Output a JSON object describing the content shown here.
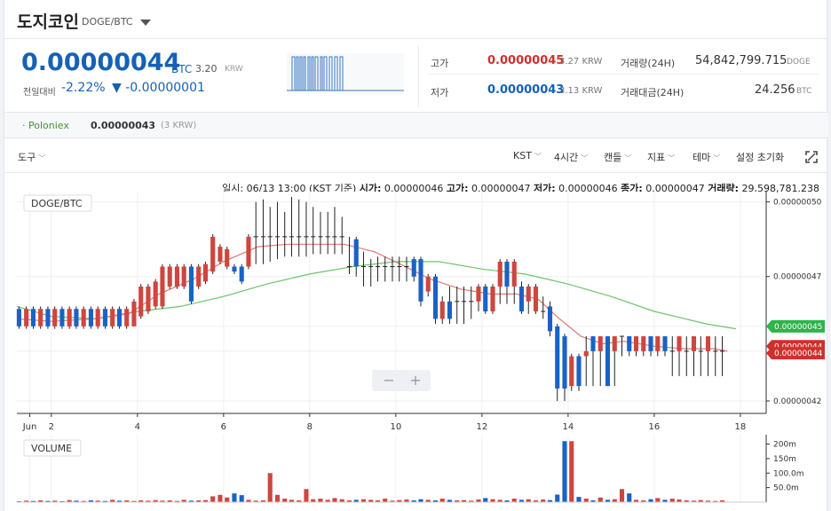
{
  "header": {
    "coin_name": "도지코인",
    "pair": "DOGE/BTC"
  },
  "price": {
    "current": "0.00000044",
    "unit": "BTC",
    "krw": "3.20",
    "krw_unit": "KRW",
    "change_label": "전일대비",
    "change_pct": "-2.22%",
    "change_val": "▼ -0.00000001"
  },
  "stats": {
    "high_label": "고가",
    "high_value": "0.00000045",
    "high_krw": "3.27 KRW",
    "low_label": "저가",
    "low_value": "0.00000043",
    "low_krw": "3.13 KRW",
    "volume_label": "거래량(24H)",
    "volume_value": "54,842,799.715",
    "volume_unit": "DOGE",
    "amount_label": "거래대금(24H)",
    "amount_value": "24.256",
    "amount_unit": "BTC"
  },
  "exchange": {
    "name": "· Poloniex",
    "price": "0.00000043",
    "krw": "(3 KRW)"
  },
  "toolbar": {
    "tools": "도구",
    "timezone": "KST",
    "interval": "4시간",
    "candle": "캔들",
    "indicator": "지표",
    "theme": "테마",
    "reset": "설정 초기화"
  },
  "info_line": {
    "time_label": "일시:",
    "time_value": "06/13 13:00 (KST 기준)",
    "open_label": "시가:",
    "open_value": "0.00000046",
    "high_label": "고가:",
    "high_value": "0.00000047",
    "low_label": "저가:",
    "low_value": "0.00000046",
    "close_label": "종가:",
    "close_value": "0.00000047",
    "vol_label": "거래량:",
    "vol_value": "29,598,781.238"
  },
  "chart_labels": {
    "price_legend": "DOGE/BTC",
    "volume_legend": "VOLUME",
    "zoom_out": "−",
    "zoom_in": "+"
  },
  "chart_data": {
    "type": "candlestick",
    "y_ticks": [
      "0.00000050",
      "0.00000047",
      "0.00000045",
      "0.00000044",
      "0.00000044",
      "0.00000042"
    ],
    "y_tick_values": [
      50,
      47,
      45,
      44,
      44,
      42
    ],
    "price_badges": [
      {
        "value": "0.00000045",
        "color": "#2db44a"
      },
      {
        "value": "0.00000044",
        "color": "#d0302d"
      },
      {
        "value": "0.00000044",
        "color": "#d0302d"
      }
    ],
    "x_tick_labels": [
      "Jun",
      "2",
      "4",
      "6",
      "8",
      "10",
      "12",
      "14",
      "16",
      "18"
    ],
    "x_tick_days": [
      0.5,
      1,
      3,
      5,
      7,
      9,
      11,
      13,
      15,
      17
    ],
    "ylim": [
      41.5,
      50.2
    ],
    "xlim_days": [
      0.2,
      17.6
    ],
    "volume_ticks": [
      "200m",
      "150m",
      "100.0m",
      "50.0m"
    ],
    "volume_tick_values": [
      200,
      150,
      100,
      50
    ],
    "volume_max": 220,
    "candles": [
      {
        "d": 0.25,
        "o": 45.7,
        "c": 45.0,
        "h": 45.8,
        "l": 44.9,
        "v": 3
      },
      {
        "d": 0.42,
        "o": 45.0,
        "c": 45.7,
        "h": 45.8,
        "l": 44.9,
        "v": 5
      },
      {
        "d": 0.58,
        "o": 45.7,
        "c": 45.0,
        "h": 45.8,
        "l": 44.9,
        "v": 4
      },
      {
        "d": 0.75,
        "o": 45.0,
        "c": 45.7,
        "h": 45.8,
        "l": 44.9,
        "v": 6
      },
      {
        "d": 0.92,
        "o": 45.7,
        "c": 45.0,
        "h": 45.8,
        "l": 44.9,
        "v": 4
      },
      {
        "d": 1.08,
        "o": 45.0,
        "c": 45.7,
        "h": 45.8,
        "l": 44.9,
        "v": 5
      },
      {
        "d": 1.25,
        "o": 45.7,
        "c": 45.0,
        "h": 45.8,
        "l": 44.9,
        "v": 3
      },
      {
        "d": 1.42,
        "o": 45.0,
        "c": 45.7,
        "h": 45.8,
        "l": 44.9,
        "v": 7
      },
      {
        "d": 1.58,
        "o": 45.7,
        "c": 45.0,
        "h": 45.8,
        "l": 44.9,
        "v": 5
      },
      {
        "d": 1.75,
        "o": 45.0,
        "c": 45.7,
        "h": 45.8,
        "l": 44.9,
        "v": 4
      },
      {
        "d": 1.92,
        "o": 45.7,
        "c": 45.0,
        "h": 45.8,
        "l": 44.9,
        "v": 6
      },
      {
        "d": 2.08,
        "o": 45.0,
        "c": 45.7,
        "h": 45.8,
        "l": 44.9,
        "v": 5
      },
      {
        "d": 2.25,
        "o": 45.7,
        "c": 45.0,
        "h": 45.8,
        "l": 44.9,
        "v": 4
      },
      {
        "d": 2.42,
        "o": 45.0,
        "c": 45.7,
        "h": 45.8,
        "l": 44.9,
        "v": 8
      },
      {
        "d": 2.58,
        "o": 45.7,
        "c": 45.0,
        "h": 45.8,
        "l": 44.9,
        "v": 5
      },
      {
        "d": 2.75,
        "o": 45.0,
        "c": 45.7,
        "h": 45.8,
        "l": 44.9,
        "v": 6
      },
      {
        "d": 2.92,
        "o": 45.0,
        "c": 46.0,
        "h": 46.1,
        "l": 45.0,
        "v": 4
      },
      {
        "d": 3.08,
        "o": 45.4,
        "c": 46.6,
        "h": 46.7,
        "l": 45.3,
        "v": 6
      },
      {
        "d": 3.25,
        "o": 45.6,
        "c": 46.6,
        "h": 46.7,
        "l": 45.5,
        "v": 5
      },
      {
        "d": 3.42,
        "o": 45.8,
        "c": 46.8,
        "h": 46.9,
        "l": 45.7,
        "v": 7
      },
      {
        "d": 3.58,
        "o": 45.8,
        "c": 47.4,
        "h": 47.5,
        "l": 45.7,
        "v": 5
      },
      {
        "d": 3.75,
        "o": 46.6,
        "c": 47.4,
        "h": 47.5,
        "l": 46.5,
        "v": 6
      },
      {
        "d": 3.92,
        "o": 46.6,
        "c": 47.4,
        "h": 47.5,
        "l": 46.5,
        "v": 4
      },
      {
        "d": 4.08,
        "o": 46.6,
        "c": 47.4,
        "h": 47.5,
        "l": 46.5,
        "v": 8
      },
      {
        "d": 4.25,
        "o": 47.4,
        "c": 46.0,
        "h": 47.5,
        "l": 45.9,
        "v": 5
      },
      {
        "d": 4.42,
        "o": 46.6,
        "c": 47.4,
        "h": 47.5,
        "l": 46.5,
        "v": 6
      },
      {
        "d": 4.58,
        "o": 46.8,
        "c": 47.5,
        "h": 47.6,
        "l": 46.7,
        "v": 7
      },
      {
        "d": 4.75,
        "o": 47.2,
        "c": 48.6,
        "h": 48.7,
        "l": 47.1,
        "v": 20
      },
      {
        "d": 4.92,
        "o": 47.6,
        "c": 48.2,
        "h": 48.3,
        "l": 47.5,
        "v": 25
      },
      {
        "d": 5.08,
        "o": 47.4,
        "c": 48.1,
        "h": 48.2,
        "l": 47.3,
        "v": 16
      },
      {
        "d": 5.25,
        "o": 47.4,
        "c": 47.2,
        "h": 47.5,
        "l": 47.1,
        "v": 30
      },
      {
        "d": 5.42,
        "o": 47.4,
        "c": 46.8,
        "h": 47.5,
        "l": 46.7,
        "v": 24
      },
      {
        "d": 5.58,
        "o": 47.4,
        "c": 48.6,
        "h": 48.7,
        "l": 47.3,
        "v": 8
      },
      {
        "d": 5.75,
        "o": 48.6,
        "c": 48.6,
        "h": 50.0,
        "l": 47.5,
        "v": 5
      },
      {
        "d": 5.92,
        "o": 48.6,
        "c": 48.6,
        "h": 50.1,
        "l": 47.5,
        "v": 6
      },
      {
        "d": 6.08,
        "o": 48.6,
        "c": 48.6,
        "h": 49.8,
        "l": 47.6,
        "v": 100
      },
      {
        "d": 6.25,
        "o": 48.6,
        "c": 48.6,
        "h": 50.0,
        "l": 47.7,
        "v": 25
      },
      {
        "d": 6.42,
        "o": 48.6,
        "c": 48.6,
        "h": 49.6,
        "l": 47.8,
        "v": 12
      },
      {
        "d": 6.58,
        "o": 48.6,
        "c": 48.6,
        "h": 50.2,
        "l": 47.8,
        "v": 8
      },
      {
        "d": 6.75,
        "o": 48.6,
        "c": 48.6,
        "h": 50.1,
        "l": 47.8,
        "v": 6
      },
      {
        "d": 6.92,
        "o": 48.6,
        "c": 48.6,
        "h": 50.0,
        "l": 47.8,
        "v": 45
      },
      {
        "d": 7.08,
        "o": 48.6,
        "c": 48.6,
        "h": 49.8,
        "l": 47.9,
        "v": 10
      },
      {
        "d": 7.25,
        "o": 48.6,
        "c": 48.6,
        "h": 49.6,
        "l": 47.9,
        "v": 12
      },
      {
        "d": 7.42,
        "o": 48.6,
        "c": 48.6,
        "h": 49.6,
        "l": 47.9,
        "v": 8
      },
      {
        "d": 7.58,
        "o": 48.6,
        "c": 48.6,
        "h": 49.8,
        "l": 47.9,
        "v": 14
      },
      {
        "d": 7.75,
        "o": 48.6,
        "c": 48.6,
        "h": 49.4,
        "l": 47.9,
        "v": 10
      },
      {
        "d": 7.92,
        "o": 47.4,
        "c": 47.4,
        "h": 48.6,
        "l": 47.1,
        "v": 6
      },
      {
        "d": 8.08,
        "o": 48.5,
        "c": 47.4,
        "h": 48.6,
        "l": 47.0,
        "v": 8
      },
      {
        "d": 8.25,
        "o": 47.4,
        "c": 47.4,
        "h": 48.0,
        "l": 46.6,
        "v": 10
      },
      {
        "d": 8.42,
        "o": 47.4,
        "c": 47.4,
        "h": 47.7,
        "l": 46.6,
        "v": 8
      },
      {
        "d": 8.58,
        "o": 47.4,
        "c": 47.4,
        "h": 47.8,
        "l": 46.8,
        "v": 6
      },
      {
        "d": 8.75,
        "o": 47.4,
        "c": 47.4,
        "h": 47.8,
        "l": 46.8,
        "v": 12
      },
      {
        "d": 8.92,
        "o": 47.4,
        "c": 47.4,
        "h": 47.8,
        "l": 46.8,
        "v": 5
      },
      {
        "d": 9.08,
        "o": 47.4,
        "c": 47.4,
        "h": 47.8,
        "l": 46.8,
        "v": 7
      },
      {
        "d": 9.25,
        "o": 47.4,
        "c": 47.4,
        "h": 47.8,
        "l": 46.8,
        "v": 9
      },
      {
        "d": 9.42,
        "o": 47.7,
        "c": 47.0,
        "h": 47.8,
        "l": 46.8,
        "v": 6
      },
      {
        "d": 9.58,
        "o": 47.7,
        "c": 46.0,
        "h": 47.8,
        "l": 45.8,
        "v": 10
      },
      {
        "d": 9.75,
        "o": 46.4,
        "c": 47.0,
        "h": 47.1,
        "l": 46.2,
        "v": 8
      },
      {
        "d": 9.92,
        "o": 47.0,
        "c": 45.3,
        "h": 47.1,
        "l": 45.1,
        "v": 6
      },
      {
        "d": 10.08,
        "o": 45.3,
        "c": 46.0,
        "h": 46.2,
        "l": 45.1,
        "v": 12
      },
      {
        "d": 10.25,
        "o": 46.0,
        "c": 45.3,
        "h": 46.6,
        "l": 45.1,
        "v": 8
      },
      {
        "d": 10.42,
        "o": 46.0,
        "c": 46.0,
        "h": 46.6,
        "l": 45.1,
        "v": 6
      },
      {
        "d": 10.58,
        "o": 46.0,
        "c": 46.0,
        "h": 46.6,
        "l": 45.1,
        "v": 7
      },
      {
        "d": 10.75,
        "o": 46.0,
        "c": 46.0,
        "h": 46.6,
        "l": 45.3,
        "v": 5
      },
      {
        "d": 10.92,
        "o": 46.0,
        "c": 46.6,
        "h": 46.7,
        "l": 45.6,
        "v": 9
      },
      {
        "d": 11.08,
        "o": 46.6,
        "c": 45.6,
        "h": 46.7,
        "l": 45.5,
        "v": 14
      },
      {
        "d": 11.25,
        "o": 45.6,
        "c": 46.6,
        "h": 46.7,
        "l": 45.5,
        "v": 10
      },
      {
        "d": 11.42,
        "o": 46.6,
        "c": 47.6,
        "h": 47.7,
        "l": 45.9,
        "v": 8
      },
      {
        "d": 11.58,
        "o": 47.6,
        "c": 46.6,
        "h": 47.7,
        "l": 45.9,
        "v": 6
      },
      {
        "d": 11.75,
        "o": 46.6,
        "c": 47.6,
        "h": 47.7,
        "l": 45.9,
        "v": 12
      },
      {
        "d": 11.92,
        "o": 46.6,
        "c": 45.6,
        "h": 46.8,
        "l": 45.5,
        "v": 8
      },
      {
        "d": 12.08,
        "o": 46.0,
        "c": 46.6,
        "h": 46.7,
        "l": 45.5,
        "v": 10
      },
      {
        "d": 12.25,
        "o": 45.6,
        "c": 46.6,
        "h": 46.7,
        "l": 45.5,
        "v": 6
      },
      {
        "d": 12.42,
        "o": 45.6,
        "c": 45.6,
        "h": 46.2,
        "l": 45.3,
        "v": 9
      },
      {
        "d": 12.58,
        "o": 45.8,
        "c": 44.8,
        "h": 46.0,
        "l": 44.6,
        "v": 7
      },
      {
        "d": 12.75,
        "o": 45.0,
        "c": 42.5,
        "h": 45.1,
        "l": 42.0,
        "v": 26
      },
      {
        "d": 12.92,
        "o": 44.6,
        "c": 42.5,
        "h": 44.7,
        "l": 42.0,
        "v": 210
      },
      {
        "d": 13.08,
        "o": 42.6,
        "c": 43.8,
        "h": 43.9,
        "l": 42.4,
        "v": 210
      },
      {
        "d": 13.25,
        "o": 43.8,
        "c": 42.6,
        "h": 43.9,
        "l": 42.4,
        "v": 18
      },
      {
        "d": 13.42,
        "o": 43.8,
        "c": 44.0,
        "h": 44.6,
        "l": 42.6,
        "v": 12
      },
      {
        "d": 13.58,
        "o": 44.6,
        "c": 44.0,
        "h": 44.6,
        "l": 42.6,
        "v": 6
      },
      {
        "d": 13.75,
        "o": 44.0,
        "c": 44.6,
        "h": 44.6,
        "l": 42.6,
        "v": 16
      },
      {
        "d": 13.92,
        "o": 44.6,
        "c": 42.6,
        "h": 44.6,
        "l": 42.6,
        "v": 8
      },
      {
        "d": 14.08,
        "o": 44.0,
        "c": 44.6,
        "h": 44.6,
        "l": 42.6,
        "v": 10
      },
      {
        "d": 14.25,
        "o": 44.6,
        "c": 44.6,
        "h": 44.6,
        "l": 43.8,
        "v": 45
      },
      {
        "d": 14.42,
        "o": 44.6,
        "c": 44.0,
        "h": 44.6,
        "l": 43.8,
        "v": 30
      },
      {
        "d": 14.58,
        "o": 44.0,
        "c": 44.6,
        "h": 44.6,
        "l": 43.8,
        "v": 8
      },
      {
        "d": 14.75,
        "o": 44.0,
        "c": 44.6,
        "h": 44.6,
        "l": 43.8,
        "v": 6
      },
      {
        "d": 14.92,
        "o": 44.6,
        "c": 44.0,
        "h": 44.6,
        "l": 43.8,
        "v": 10
      },
      {
        "d": 15.08,
        "o": 44.0,
        "c": 44.6,
        "h": 44.6,
        "l": 43.8,
        "v": 14
      },
      {
        "d": 15.25,
        "o": 44.6,
        "c": 44.0,
        "h": 44.6,
        "l": 43.8,
        "v": 8
      },
      {
        "d": 15.42,
        "o": 44.0,
        "c": 44.0,
        "h": 44.6,
        "l": 43.0,
        "v": 12
      },
      {
        "d": 15.58,
        "o": 44.0,
        "c": 44.6,
        "h": 44.6,
        "l": 43.0,
        "v": 9
      },
      {
        "d": 15.75,
        "o": 44.0,
        "c": 44.0,
        "h": 44.6,
        "l": 43.0,
        "v": 6
      },
      {
        "d": 15.92,
        "o": 44.0,
        "c": 44.6,
        "h": 44.6,
        "l": 43.0,
        "v": 5
      },
      {
        "d": 16.08,
        "o": 44.0,
        "c": 44.0,
        "h": 44.6,
        "l": 43.0,
        "v": 7
      },
      {
        "d": 16.25,
        "o": 44.0,
        "c": 44.6,
        "h": 44.6,
        "l": 43.0,
        "v": 5
      },
      {
        "d": 16.42,
        "o": 44.0,
        "c": 44.0,
        "h": 44.6,
        "l": 43.0,
        "v": 4
      },
      {
        "d": 16.58,
        "o": 44.0,
        "c": 44.0,
        "h": 44.6,
        "l": 43.0,
        "v": 6
      }
    ],
    "ma_short": [
      [
        0.2,
        45.3
      ],
      [
        1,
        45.2
      ],
      [
        2,
        45.3
      ],
      [
        2.8,
        45.5
      ],
      [
        3.5,
        46.3
      ],
      [
        4.3,
        46.9
      ],
      [
        5,
        47.6
      ],
      [
        5.8,
        48.2
      ],
      [
        6.5,
        48.3
      ],
      [
        7.2,
        48.3
      ],
      [
        7.8,
        48.3
      ],
      [
        8.5,
        48.0
      ],
      [
        9.1,
        47.5
      ],
      [
        9.8,
        46.9
      ],
      [
        10.5,
        46.5
      ],
      [
        11.2,
        46.3
      ],
      [
        11.8,
        46.3
      ],
      [
        12.3,
        46.1
      ],
      [
        12.8,
        45.3
      ],
      [
        13.3,
        44.6
      ],
      [
        13.8,
        44.3
      ],
      [
        14.3,
        44.4
      ],
      [
        15,
        44.2
      ],
      [
        15.7,
        44.1
      ],
      [
        16.4,
        44.1
      ],
      [
        16.7,
        44.0
      ]
    ],
    "ma_long": [
      [
        0.2,
        45.8
      ],
      [
        1,
        45.4
      ],
      [
        2,
        45.3
      ],
      [
        3,
        45.6
      ],
      [
        4,
        45.8
      ],
      [
        5,
        46.2
      ],
      [
        6,
        46.7
      ],
      [
        7,
        47.1
      ],
      [
        8,
        47.4
      ],
      [
        9,
        47.6
      ],
      [
        10,
        47.6
      ],
      [
        11,
        47.3
      ],
      [
        12,
        47.1
      ],
      [
        13,
        46.7
      ],
      [
        14,
        46.2
      ],
      [
        15,
        45.6
      ],
      [
        16.2,
        45.1
      ],
      [
        16.9,
        44.9
      ]
    ]
  }
}
